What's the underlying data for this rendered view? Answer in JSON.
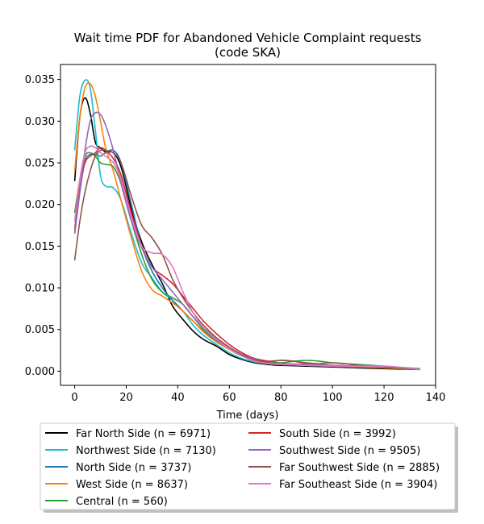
{
  "chart_data": {
    "type": "line",
    "title": "Wait time PDF for Abandoned Vehicle Complaint  requests",
    "subtitle": "(code SKA)",
    "xlabel": "Time (days)",
    "ylabel": "",
    "xlim": [
      -5.5,
      140
    ],
    "ylim": [
      -0.0017,
      0.0368
    ],
    "xticks": [
      0,
      20,
      40,
      60,
      80,
      100,
      120,
      140
    ],
    "yticks": [
      0.0,
      0.005,
      0.01,
      0.015,
      0.02,
      0.025,
      0.03,
      0.035
    ],
    "xtick_labels": [
      "0",
      "20",
      "40",
      "60",
      "80",
      "100",
      "120",
      "140"
    ],
    "ytick_labels": [
      "0.000",
      "0.005",
      "0.010",
      "0.015",
      "0.020",
      "0.025",
      "0.030",
      "0.035"
    ],
    "grid": false,
    "legend_placement": "below",
    "series": [
      {
        "name": "Far North Side (n = 6971)",
        "color": "#000000",
        "x": [
          0,
          2,
          4,
          6,
          8,
          10,
          12,
          15,
          18,
          22,
          26,
          30,
          34,
          38,
          42,
          46,
          50,
          55,
          60,
          65,
          70,
          75,
          80,
          90,
          100,
          110,
          120,
          134
        ],
        "y": [
          0.0228,
          0.0305,
          0.0328,
          0.031,
          0.0275,
          0.0268,
          0.0263,
          0.0262,
          0.0245,
          0.0195,
          0.0155,
          0.0128,
          0.0105,
          0.0078,
          0.0062,
          0.0048,
          0.0038,
          0.003,
          0.002,
          0.0014,
          0.001,
          0.0008,
          0.0007,
          0.0006,
          0.0005,
          0.0004,
          0.0003,
          0.0002
        ]
      },
      {
        "name": "Northwest Side (n = 7130)",
        "color": "#17becf",
        "x": [
          0,
          2,
          4,
          6,
          8,
          10,
          12,
          15,
          18,
          22,
          26,
          30,
          34,
          38,
          42,
          46,
          50,
          55,
          60,
          65,
          70,
          75,
          80,
          90,
          100,
          110,
          120,
          134
        ],
        "y": [
          0.0265,
          0.033,
          0.0349,
          0.034,
          0.029,
          0.0235,
          0.0222,
          0.022,
          0.0205,
          0.0165,
          0.013,
          0.0112,
          0.0095,
          0.0085,
          0.0072,
          0.0055,
          0.0043,
          0.0032,
          0.0022,
          0.0015,
          0.0011,
          0.0009,
          0.0008,
          0.0007,
          0.0006,
          0.0005,
          0.0004,
          0.0002
        ]
      },
      {
        "name": "North Side (n = 3737)",
        "color": "#1f77b4",
        "x": [
          0,
          2,
          4,
          6,
          8,
          10,
          12,
          15,
          18,
          22,
          26,
          30,
          34,
          38,
          42,
          46,
          50,
          55,
          60,
          65,
          70,
          75,
          80,
          90,
          100,
          110,
          120,
          134
        ],
        "y": [
          0.0165,
          0.0215,
          0.0252,
          0.026,
          0.026,
          0.0258,
          0.0262,
          0.0265,
          0.025,
          0.02,
          0.015,
          0.012,
          0.01,
          0.0085,
          0.0072,
          0.006,
          0.0048,
          0.0036,
          0.0026,
          0.0018,
          0.0013,
          0.001,
          0.0009,
          0.0008,
          0.0007,
          0.0006,
          0.0005,
          0.0002
        ]
      },
      {
        "name": "West Side (n = 8637)",
        "color": "#ff7f0e",
        "x": [
          0,
          2,
          4,
          6,
          8,
          10,
          12,
          15,
          18,
          22,
          26,
          30,
          34,
          38,
          42,
          46,
          50,
          55,
          60,
          65,
          70,
          75,
          80,
          90,
          100,
          110,
          120,
          134
        ],
        "y": [
          0.024,
          0.0305,
          0.034,
          0.0345,
          0.033,
          0.03,
          0.0268,
          0.024,
          0.0205,
          0.016,
          0.012,
          0.0098,
          0.009,
          0.0082,
          0.0072,
          0.006,
          0.0047,
          0.0035,
          0.0026,
          0.0018,
          0.0012,
          0.0009,
          0.0008,
          0.0007,
          0.0006,
          0.0005,
          0.0004,
          0.0002
        ]
      },
      {
        "name": "Central (n = 560)",
        "color": "#2ca02c",
        "x": [
          0,
          2,
          4,
          6,
          8,
          10,
          12,
          15,
          18,
          22,
          26,
          30,
          34,
          38,
          42,
          46,
          50,
          55,
          60,
          65,
          70,
          75,
          80,
          85,
          90,
          95,
          100,
          110,
          120,
          134
        ],
        "y": [
          0.019,
          0.023,
          0.0258,
          0.0262,
          0.0258,
          0.025,
          0.0248,
          0.0245,
          0.0225,
          0.018,
          0.014,
          0.011,
          0.0095,
          0.0088,
          0.008,
          0.0065,
          0.005,
          0.0038,
          0.0028,
          0.002,
          0.0015,
          0.0012,
          0.001,
          0.0012,
          0.0013,
          0.0012,
          0.001,
          0.0008,
          0.0006,
          0.0003
        ]
      },
      {
        "name": "South Side (n = 3992)",
        "color": "#d62728",
        "x": [
          0,
          2,
          4,
          6,
          8,
          10,
          12,
          15,
          18,
          22,
          26,
          30,
          34,
          38,
          42,
          46,
          50,
          55,
          60,
          65,
          70,
          75,
          80,
          85,
          90,
          100,
          110,
          120,
          134
        ],
        "y": [
          0.017,
          0.022,
          0.025,
          0.0258,
          0.0262,
          0.0268,
          0.0265,
          0.0255,
          0.0235,
          0.019,
          0.015,
          0.0125,
          0.0115,
          0.0105,
          0.009,
          0.0075,
          0.006,
          0.0045,
          0.0032,
          0.0022,
          0.0015,
          0.0012,
          0.0013,
          0.0012,
          0.0009,
          0.0007,
          0.0006,
          0.0005,
          0.0002
        ]
      },
      {
        "name": "Southwest Side (n = 9505)",
        "color": "#9467bd",
        "x": [
          0,
          2,
          4,
          6,
          8,
          10,
          12,
          15,
          18,
          22,
          26,
          30,
          34,
          38,
          42,
          46,
          50,
          55,
          60,
          65,
          70,
          75,
          80,
          90,
          100,
          110,
          120,
          134
        ],
        "y": [
          0.0165,
          0.0215,
          0.0265,
          0.03,
          0.031,
          0.0308,
          0.0295,
          0.0265,
          0.0225,
          0.018,
          0.0148,
          0.0125,
          0.011,
          0.0095,
          0.008,
          0.0065,
          0.0052,
          0.004,
          0.0029,
          0.002,
          0.0014,
          0.001,
          0.0009,
          0.0008,
          0.0007,
          0.0006,
          0.0005,
          0.0002
        ]
      },
      {
        "name": "Far Southwest Side (n = 2885)",
        "color": "#8c564b",
        "x": [
          0,
          2,
          4,
          6,
          8,
          10,
          12,
          15,
          18,
          22,
          26,
          30,
          34,
          38,
          42,
          46,
          50,
          55,
          60,
          65,
          70,
          75,
          80,
          85,
          90,
          95,
          100,
          105,
          110,
          120,
          134
        ],
        "y": [
          0.0133,
          0.018,
          0.0215,
          0.024,
          0.0258,
          0.0265,
          0.0265,
          0.0262,
          0.025,
          0.021,
          0.0175,
          0.016,
          0.014,
          0.011,
          0.0088,
          0.007,
          0.0055,
          0.004,
          0.0028,
          0.0019,
          0.0013,
          0.0011,
          0.0013,
          0.0012,
          0.001,
          0.0009,
          0.001,
          0.0009,
          0.0007,
          0.0005,
          0.0002
        ]
      },
      {
        "name": "Far Southeast Side (n = 3904)",
        "color": "#e377c2",
        "x": [
          0,
          2,
          4,
          6,
          8,
          10,
          12,
          15,
          18,
          22,
          26,
          30,
          34,
          38,
          42,
          46,
          50,
          55,
          60,
          65,
          70,
          75,
          80,
          90,
          100,
          110,
          120,
          125,
          134
        ],
        "y": [
          0.018,
          0.023,
          0.0262,
          0.027,
          0.0268,
          0.0262,
          0.0258,
          0.025,
          0.023,
          0.0185,
          0.015,
          0.0142,
          0.014,
          0.0125,
          0.0095,
          0.007,
          0.0052,
          0.0038,
          0.0027,
          0.0018,
          0.0012,
          0.0009,
          0.0008,
          0.0007,
          0.0006,
          0.0006,
          0.0006,
          0.0005,
          0.0002
        ]
      }
    ]
  }
}
